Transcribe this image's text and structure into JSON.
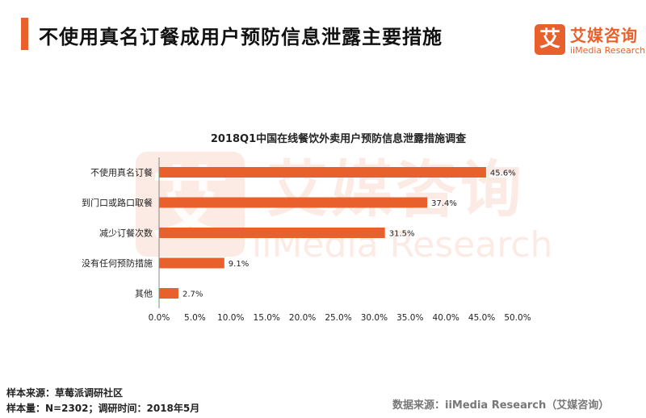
{
  "header": {
    "title": "不使用真名订餐成用户预防信息泄露主要措施"
  },
  "logo": {
    "mark": "艾",
    "cn": "艾媒咨询",
    "en": "iiMedia Research"
  },
  "watermark": {
    "mark": "艾",
    "cn": "艾媒咨询",
    "en": "iiMedia Research"
  },
  "chart_data": {
    "type": "bar",
    "orientation": "horizontal",
    "title": "2018Q1中国在线餐饮外卖用户预防信息泄露措施调查",
    "categories": [
      "不使用真名订餐",
      "到门口或路口取餐",
      "减少订餐次数",
      "没有任何预防措施",
      "其他"
    ],
    "values": [
      45.6,
      37.4,
      31.5,
      9.1,
      2.7
    ],
    "value_labels": [
      "45.6%",
      "37.4%",
      "31.5%",
      "9.1%",
      "2.7%"
    ],
    "xlim": [
      0,
      50
    ],
    "xticks": [
      "0.0%",
      "5.0%",
      "10.0%",
      "15.0%",
      "20.0%",
      "25.0%",
      "30.0%",
      "35.0%",
      "40.0%",
      "45.0%",
      "50.0%"
    ],
    "grid": false,
    "legend": "none",
    "bar_color": "#e8612c"
  },
  "footer": {
    "sample_source": "样本来源：草莓派调研社区",
    "sample_info": "样本量：N=2302；调研时间：2018年5月",
    "data_source": "数据来源：iiMedia Research（艾媒咨询）"
  }
}
